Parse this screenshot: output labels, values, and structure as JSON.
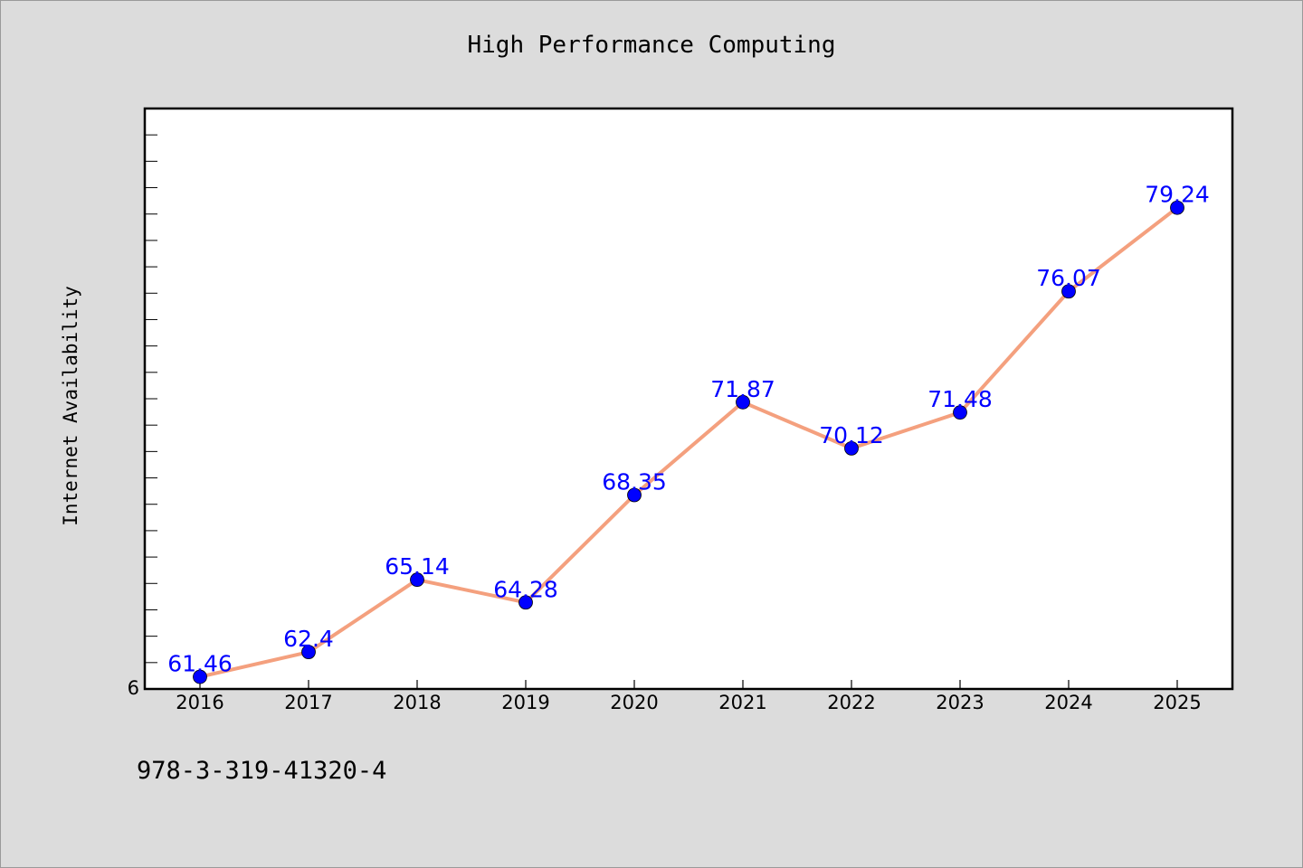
{
  "chart_data": {
    "type": "line",
    "title": "High Performance Computing",
    "xlabel": "",
    "ylabel": "Internet Availability",
    "x": [
      "2016",
      "2017",
      "2018",
      "2019",
      "2020",
      "2021",
      "2022",
      "2023",
      "2024",
      "2025"
    ],
    "series": [
      {
        "values": [
          61.46,
          62.4,
          65.14,
          64.28,
          68.35,
          71.87,
          70.12,
          71.48,
          76.07,
          79.24
        ],
        "labels": [
          "61.46",
          "62.4",
          "65.14",
          "64.28",
          "68.35",
          "71.87",
          "70.12",
          "71.48",
          "76.07",
          "79.24"
        ],
        "line_color": "#f4a07e",
        "marker_color": "#0000ff"
      }
    ],
    "ylim": [
      61,
      83
    ],
    "y_tick_labels": [
      "6"
    ],
    "y_minor_ticks": true,
    "grid": false,
    "legend": "none"
  },
  "footer": {
    "isbn": "978-3-319-41320-4"
  }
}
